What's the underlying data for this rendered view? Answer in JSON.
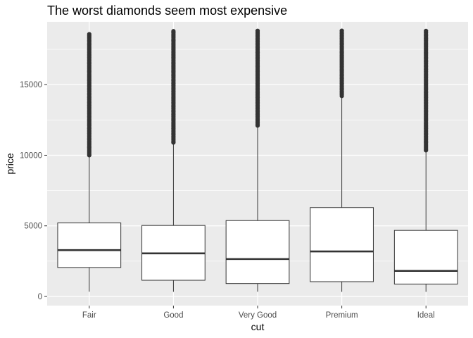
{
  "chart_data": {
    "type": "boxplot",
    "title": "The worst diamonds seem most expensive",
    "xlabel": "cut",
    "ylabel": "price",
    "ylim": [
      -650,
      19450
    ],
    "yticks": [
      0,
      5000,
      10000,
      15000
    ],
    "ytick_labels": [
      "0",
      "5000",
      "10000",
      "15000"
    ],
    "grid": true,
    "legend": "none",
    "colors": {
      "panel": "#ebebeb",
      "grid_major": "#ffffff",
      "box_fill": "#ffffff",
      "box_stroke": "#333333",
      "outlier": "#333333"
    },
    "categories": [
      "Fair",
      "Good",
      "Very Good",
      "Premium",
      "Ideal"
    ],
    "boxes": [
      {
        "category": "Fair",
        "min": 337,
        "q1": 2050,
        "median": 3282,
        "q3": 5206,
        "max": 9940,
        "outliers_from": 10000,
        "outliers_to": 18574
      },
      {
        "category": "Good",
        "min": 327,
        "q1": 1145,
        "median": 3050,
        "q3": 5028,
        "max": 10850,
        "outliers_from": 10900,
        "outliers_to": 18788
      },
      {
        "category": "Very Good",
        "min": 336,
        "q1": 912,
        "median": 2648,
        "q3": 5373,
        "max": 12050,
        "outliers_from": 12100,
        "outliers_to": 18818
      },
      {
        "category": "Premium",
        "min": 326,
        "q1": 1046,
        "median": 3185,
        "q3": 6296,
        "max": 14150,
        "outliers_from": 14200,
        "outliers_to": 18823
      },
      {
        "category": "Ideal",
        "min": 326,
        "q1": 878,
        "median": 1810,
        "q3": 4678,
        "max": 10300,
        "outliers_from": 10350,
        "outliers_to": 18806
      }
    ]
  }
}
